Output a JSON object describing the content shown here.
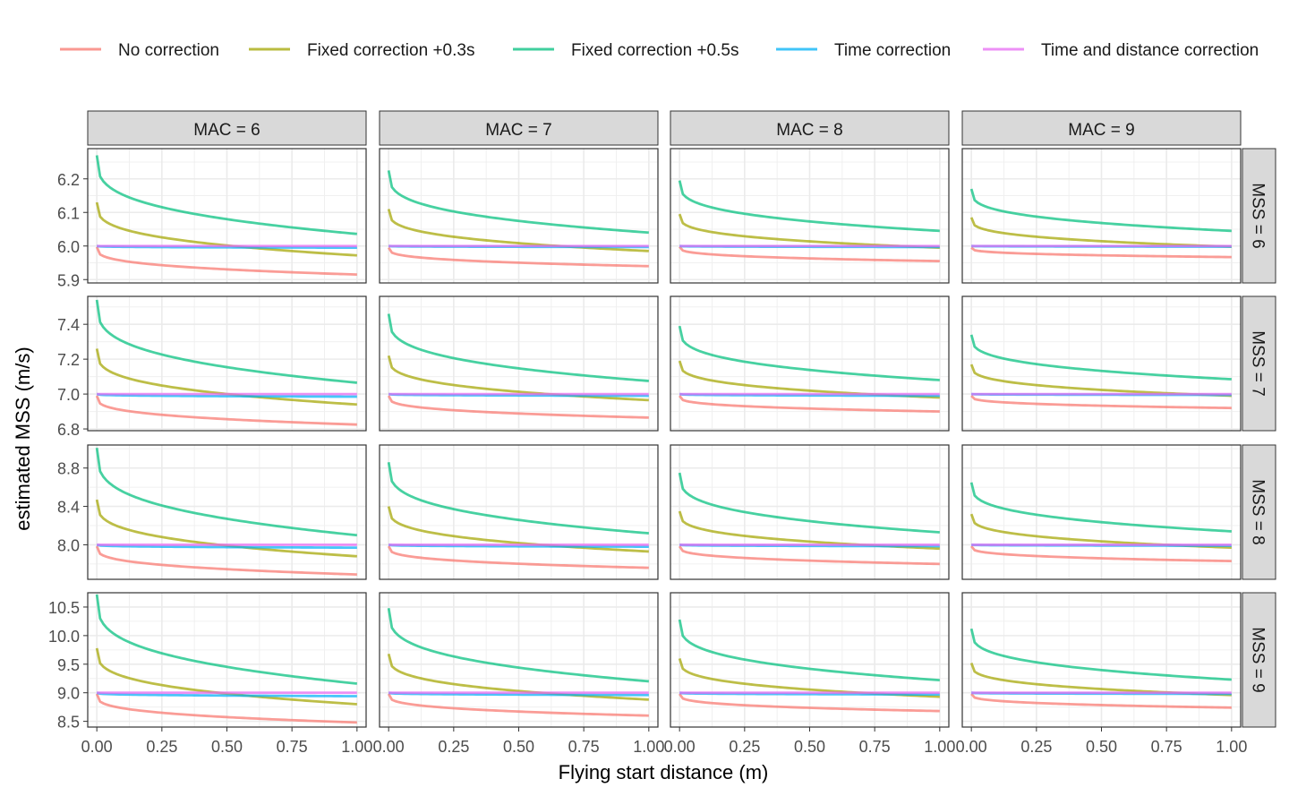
{
  "chart_data": {
    "type": "line",
    "xlabel": "Flying start distance (m)",
    "ylabel": "estimated MSS (m/s)",
    "xlim": [
      -0.035,
      1.035
    ],
    "x_ticks": [
      0,
      0.25,
      0.5,
      0.75,
      1.0
    ],
    "x_tick_labels": [
      "0.00",
      "0.25",
      "0.50",
      "0.75",
      "1.00"
    ],
    "grid": true,
    "legend": {
      "position": "top",
      "entries": [
        {
          "label": "No correction",
          "color": "#F8766D"
        },
        {
          "label": "Fixed correction +0.3s",
          "color": "#A3A500"
        },
        {
          "label": "Fixed correction +0.5s",
          "color": "#00BF7D"
        },
        {
          "label": "Time correction",
          "color": "#00B0F6"
        },
        {
          "label": "Time and distance correction",
          "color": "#E76BF3"
        }
      ]
    },
    "col_strips": [
      "MAC =  6",
      "MAC =  7",
      "MAC =  8",
      "MAC =  9"
    ],
    "row_strips": [
      "MSS = 6",
      "MSS = 7",
      "MSS = 8",
      "MSS = 9"
    ],
    "rows": [
      {
        "ylim": [
          5.89,
          6.29
        ],
        "y_ticks": [
          5.9,
          6.0,
          6.1,
          6.2
        ],
        "y_tick_labels": [
          "5.9",
          "6.0",
          "6.1",
          "6.2"
        ],
        "panels": [
          {
            "start": [
              5.997,
              6.13,
              6.27,
              6.0,
              6.0
            ],
            "end": [
              5.915,
              5.972,
              6.036,
              5.995,
              6.0
            ]
          },
          {
            "start": [
              5.995,
              6.11,
              6.225,
              6.0,
              6.0
            ],
            "end": [
              5.94,
              5.985,
              6.04,
              5.997,
              6.0
            ]
          },
          {
            "start": [
              5.998,
              6.095,
              6.195,
              6.0,
              6.0
            ],
            "end": [
              5.955,
              5.995,
              6.045,
              5.997,
              6.0
            ]
          },
          {
            "start": [
              5.995,
              6.085,
              6.17,
              6.0,
              6.0
            ],
            "end": [
              5.967,
              5.998,
              6.045,
              5.998,
              6.0
            ]
          }
        ]
      },
      {
        "ylim": [
          6.79,
          7.56
        ],
        "y_ticks": [
          6.8,
          7.0,
          7.2,
          7.4
        ],
        "y_tick_labels": [
          "6.8",
          "7.0",
          "7.2",
          "7.4"
        ],
        "panels": [
          {
            "start": [
              6.99,
              7.26,
              7.54,
              7.0,
              7.0
            ],
            "end": [
              6.825,
              6.94,
              7.065,
              6.985,
              7.0
            ]
          },
          {
            "start": [
              6.99,
              7.22,
              7.46,
              7.0,
              7.0
            ],
            "end": [
              6.865,
              6.965,
              7.075,
              6.99,
              7.0
            ]
          },
          {
            "start": [
              6.99,
              7.19,
              7.39,
              7.0,
              7.0
            ],
            "end": [
              6.9,
              6.98,
              7.08,
              6.99,
              7.0
            ]
          },
          {
            "start": [
              6.99,
              7.17,
              7.34,
              7.0,
              7.0
            ],
            "end": [
              6.92,
              6.99,
              7.085,
              6.995,
              7.0
            ]
          }
        ]
      },
      {
        "ylim": [
          7.64,
          9.04
        ],
        "y_ticks": [
          8.0,
          8.4,
          8.8
        ],
        "y_tick_labels": [
          "8.0",
          "8.4",
          "8.8"
        ],
        "panels": [
          {
            "start": [
              7.985,
              8.47,
              9.01,
              8.0,
              8.0
            ],
            "end": [
              7.69,
              7.88,
              8.1,
              7.97,
              8.0
            ]
          },
          {
            "start": [
              7.985,
              8.4,
              8.86,
              8.0,
              8.0
            ],
            "end": [
              7.76,
              7.93,
              8.12,
              7.98,
              8.0
            ]
          },
          {
            "start": [
              7.985,
              8.35,
              8.75,
              8.0,
              8.0
            ],
            "end": [
              7.8,
              7.96,
              8.13,
              7.985,
              8.0
            ]
          },
          {
            "start": [
              7.985,
              8.32,
              8.65,
              8.0,
              8.0
            ],
            "end": [
              7.83,
              7.97,
              8.14,
              7.99,
              8.0
            ]
          }
        ]
      },
      {
        "ylim": [
          8.4,
          10.75
        ],
        "y_ticks": [
          8.5,
          9.0,
          9.5,
          10.0,
          10.5
        ],
        "y_tick_labels": [
          "8.5",
          "9.0",
          "9.5",
          "10.0",
          "10.5"
        ],
        "panels": [
          {
            "start": [
              8.98,
              9.78,
              10.72,
              9.0,
              9.0
            ],
            "end": [
              8.48,
              8.8,
              9.16,
              8.94,
              9.0
            ]
          },
          {
            "start": [
              8.98,
              9.68,
              10.48,
              9.0,
              9.0
            ],
            "end": [
              8.6,
              8.88,
              9.2,
              8.96,
              9.0
            ]
          },
          {
            "start": [
              8.98,
              9.6,
              10.28,
              9.0,
              9.0
            ],
            "end": [
              8.68,
              8.93,
              9.22,
              8.97,
              9.0
            ]
          },
          {
            "start": [
              8.98,
              9.52,
              10.12,
              9.0,
              9.0
            ],
            "end": [
              8.74,
              8.96,
              9.23,
              8.98,
              9.0
            ]
          }
        ]
      }
    ]
  }
}
